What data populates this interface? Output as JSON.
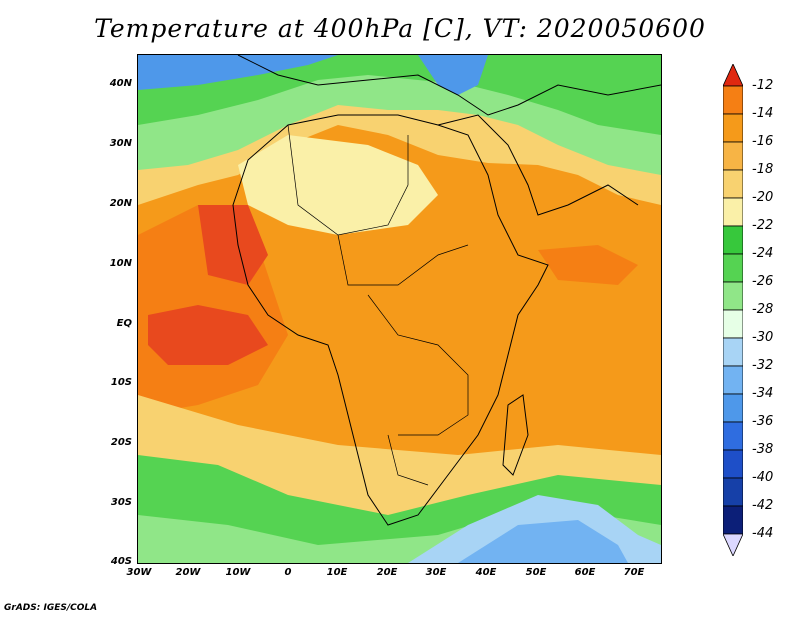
{
  "title": "Temperature at 400hPa [C], VT: 2020050600",
  "credit": "GrADS: IGES/COLA",
  "y_axis_labels": [
    "40N",
    "30N",
    "20N",
    "10N",
    "EQ",
    "10S",
    "20S",
    "30S",
    "40S"
  ],
  "x_axis_labels": [
    "30W",
    "20W",
    "10W",
    "0",
    "10E",
    "20E",
    "30E",
    "40E",
    "50E",
    "60E",
    "70E"
  ],
  "colorbar": {
    "labels": [
      "-12",
      "-14",
      "-16",
      "-18",
      "-20",
      "-22",
      "-24",
      "-26",
      "-28",
      "-30",
      "-32",
      "-34",
      "-36",
      "-38",
      "-40",
      "-42",
      "-44"
    ],
    "colors": [
      "#e8491e",
      "#f57f14",
      "#f59a1a",
      "#f7b445",
      "#f8d270",
      "#faf0a8",
      "#37c83c",
      "#55d352",
      "#90e688",
      "#e6ffe6",
      "#a8d4f5",
      "#72b3f2",
      "#4e98ea",
      "#2f6de0",
      "#1e4fc8",
      "#1640a8",
      "#0c1f78"
    ],
    "top_arrow_color": "#e02810",
    "bottom_arrow_color": "#dcd8ff"
  }
}
